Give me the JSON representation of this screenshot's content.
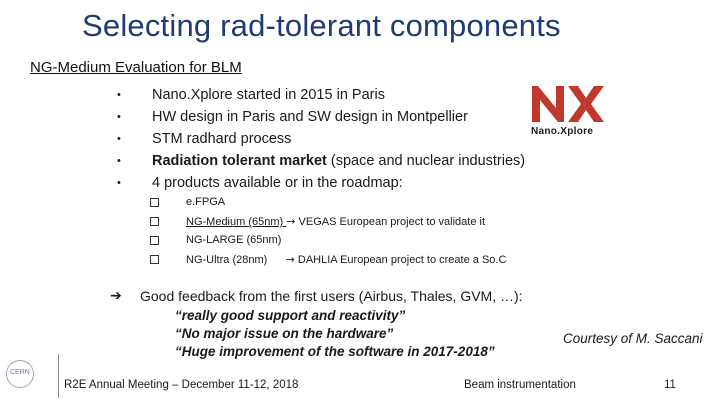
{
  "slide": {
    "title": "Selecting rad-tolerant components",
    "subtitle": "NG-Medium Evaluation for BLM",
    "bullets": [
      {
        "marker": "•",
        "text": "Nano.Xplore started in 2015 in Paris"
      },
      {
        "marker": "•",
        "text": "HW design in Paris and SW design in Montpellier"
      },
      {
        "marker": "•",
        "text": "STM radhard process"
      },
      {
        "marker": "•",
        "strong": "Radiation tolerant market",
        "text": " (space and nuclear industries)"
      },
      {
        "marker": "•",
        "text": "4 products available or in the roadmap:"
      }
    ],
    "sub_bullets": [
      {
        "text": "e.FPGA"
      },
      {
        "underlined": "NG-Medium (65nm) ",
        "arrow": "→",
        "text": " VEGAS European project to validate it"
      },
      {
        "text": "NG-LARGE (65nm)"
      },
      {
        "text": "NG-Ultra (28nm)      ",
        "arrow": "→",
        "tail": " DAHLIA European project to create a So.C"
      }
    ],
    "feedback": {
      "arrow": "➔",
      "intro": "Good feedback from the first users (Airbus, Thales, GVM, …):",
      "quotes": [
        "“really good support and reactivity”",
        "“No major issue on the hardware”",
        "“Huge improvement of the software in 2017-2018”"
      ]
    },
    "courtesy": "Courtesy of M. Saccani",
    "logo": {
      "text": "Nano.Xplore",
      "icon": "nanoxplore-logo",
      "accent": "#c0392b"
    },
    "footer": {
      "cern_label": "CERN",
      "meeting": "R2E Annual Meeting – December 11-12, 2018",
      "group": "Beam instrumentation",
      "page": "11"
    },
    "colors": {
      "title": "#1f3b73"
    }
  }
}
